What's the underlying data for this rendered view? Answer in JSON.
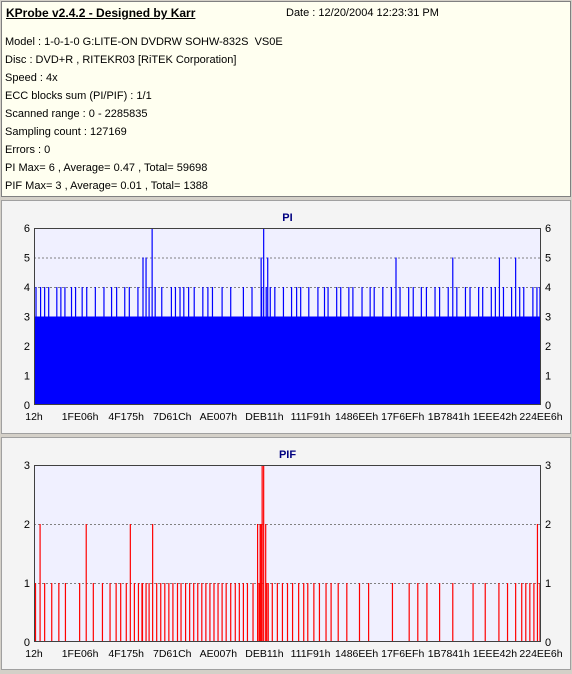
{
  "header": {
    "title": "KProbe v2.4.2 - Designed by Karr",
    "date": "Date : 12/20/2004 12:23:31 PM",
    "lines": [
      "Model : 1-0-1-0 G:LITE-ON DVDRW SOHW-832S  VS0E",
      "Disc : DVD+R , RITEKR03 [RiTEK Corporation]",
      "Speed : 4x",
      "ECC blocks sum (PI/PIF) : 1/1",
      "Scanned range : 0 - 2285835",
      "Sampling count : 127169",
      "Errors : 0",
      "PI Max= 6 , Average= 0.47 , Total= 59698",
      "PIF Max= 3 , Average= 0.01 , Total= 1388"
    ]
  },
  "chart_data": [
    {
      "type": "bar",
      "title": "PI",
      "ylim": [
        0,
        6
      ],
      "yticks": [
        0,
        1,
        2,
        3,
        4,
        5,
        6
      ],
      "xtick_labels": [
        "12h",
        "1FE06h",
        "4F175h",
        "7D61Ch",
        "AE007h",
        "DEB11h",
        "111F91h",
        "1486EEh",
        "17F6EFh",
        "1B7841h",
        "1EEE42h",
        "224EE6h"
      ],
      "color": "#0000ff",
      "grid": true,
      "base_value": 3,
      "spikes": [
        {
          "x": 0.004,
          "v": 4
        },
        {
          "x": 0.008,
          "v": 2
        },
        {
          "x": 0.013,
          "v": 4
        },
        {
          "x": 0.021,
          "v": 4
        },
        {
          "x": 0.029,
          "v": 4
        },
        {
          "x": 0.037,
          "v": 2
        },
        {
          "x": 0.045,
          "v": 4
        },
        {
          "x": 0.053,
          "v": 4
        },
        {
          "x": 0.061,
          "v": 4
        },
        {
          "x": 0.067,
          "v": 2
        },
        {
          "x": 0.074,
          "v": 4
        },
        {
          "x": 0.082,
          "v": 4
        },
        {
          "x": 0.088,
          "v": 2
        },
        {
          "x": 0.095,
          "v": 4
        },
        {
          "x": 0.104,
          "v": 4
        },
        {
          "x": 0.112,
          "v": 2
        },
        {
          "x": 0.121,
          "v": 4
        },
        {
          "x": 0.128,
          "v": 2
        },
        {
          "x": 0.138,
          "v": 4
        },
        {
          "x": 0.146,
          "v": 2
        },
        {
          "x": 0.153,
          "v": 4
        },
        {
          "x": 0.163,
          "v": 4
        },
        {
          "x": 0.17,
          "v": 2
        },
        {
          "x": 0.179,
          "v": 4
        },
        {
          "x": 0.188,
          "v": 4
        },
        {
          "x": 0.196,
          "v": 2
        },
        {
          "x": 0.205,
          "v": 4
        },
        {
          "x": 0.215,
          "v": 5
        },
        {
          "x": 0.221,
          "v": 5
        },
        {
          "x": 0.227,
          "v": 4
        },
        {
          "x": 0.233,
          "v": 6
        },
        {
          "x": 0.239,
          "v": 4
        },
        {
          "x": 0.246,
          "v": 2
        },
        {
          "x": 0.252,
          "v": 4
        },
        {
          "x": 0.262,
          "v": 2
        },
        {
          "x": 0.271,
          "v": 4
        },
        {
          "x": 0.279,
          "v": 4
        },
        {
          "x": 0.288,
          "v": 4
        },
        {
          "x": 0.297,
          "v": 2
        },
        {
          "x": 0.305,
          "v": 4
        },
        {
          "x": 0.316,
          "v": 4
        },
        {
          "x": 0.323,
          "v": 2
        },
        {
          "x": 0.333,
          "v": 4
        },
        {
          "x": 0.343,
          "v": 4
        },
        {
          "x": 0.352,
          "v": 4
        },
        {
          "x": 0.362,
          "v": 2
        },
        {
          "x": 0.371,
          "v": 4
        },
        {
          "x": 0.379,
          "v": 2
        },
        {
          "x": 0.388,
          "v": 4
        },
        {
          "x": 0.396,
          "v": 2
        },
        {
          "x": 0.404,
          "v": 2
        },
        {
          "x": 0.413,
          "v": 4
        },
        {
          "x": 0.423,
          "v": 2
        },
        {
          "x": 0.43,
          "v": 4
        },
        {
          "x": 0.44,
          "v": 2
        },
        {
          "x": 0.449,
          "v": 4
        },
        {
          "x": 0.458,
          "v": 2
        },
        {
          "x": 0.466,
          "v": 4
        },
        {
          "x": 0.475,
          "v": 4
        },
        {
          "x": 0.483,
          "v": 2
        },
        {
          "x": 0.492,
          "v": 4
        },
        {
          "x": 0.5,
          "v": 2
        },
        {
          "x": 0.508,
          "v": 4
        },
        {
          "x": 0.518,
          "v": 4
        },
        {
          "x": 0.526,
          "v": 4
        },
        {
          "x": 0.534,
          "v": 2
        },
        {
          "x": 0.542,
          "v": 4
        },
        {
          "x": 0.551,
          "v": 2
        },
        {
          "x": 0.56,
          "v": 4
        },
        {
          "x": 0.566,
          "v": 2
        },
        {
          "x": 0.573,
          "v": 4
        },
        {
          "x": 0.58,
          "v": 4
        },
        {
          "x": 0.589,
          "v": 2
        },
        {
          "x": 0.597,
          "v": 4
        },
        {
          "x": 0.605,
          "v": 4
        },
        {
          "x": 0.613,
          "v": 2
        },
        {
          "x": 0.621,
          "v": 4
        },
        {
          "x": 0.629,
          "v": 4
        },
        {
          "x": 0.637,
          "v": 2
        },
        {
          "x": 0.647,
          "v": 4
        },
        {
          "x": 0.655,
          "v": 2
        },
        {
          "x": 0.663,
          "v": 4
        },
        {
          "x": 0.671,
          "v": 4
        },
        {
          "x": 0.679,
          "v": 2
        },
        {
          "x": 0.688,
          "v": 4
        },
        {
          "x": 0.697,
          "v": 2
        },
        {
          "x": 0.705,
          "v": 4
        },
        {
          "x": 0.714,
          "v": 5
        },
        {
          "x": 0.722,
          "v": 4
        },
        {
          "x": 0.731,
          "v": 2
        },
        {
          "x": 0.739,
          "v": 4
        },
        {
          "x": 0.748,
          "v": 4
        },
        {
          "x": 0.756,
          "v": 2
        },
        {
          "x": 0.764,
          "v": 4
        },
        {
          "x": 0.774,
          "v": 4
        },
        {
          "x": 0.782,
          "v": 2
        },
        {
          "x": 0.791,
          "v": 4
        },
        {
          "x": 0.8,
          "v": 4
        },
        {
          "x": 0.808,
          "v": 2
        },
        {
          "x": 0.817,
          "v": 4
        },
        {
          "x": 0.826,
          "v": 5
        },
        {
          "x": 0.834,
          "v": 4
        },
        {
          "x": 0.842,
          "v": 2
        },
        {
          "x": 0.851,
          "v": 4
        },
        {
          "x": 0.86,
          "v": 4
        },
        {
          "x": 0.868,
          "v": 2
        },
        {
          "x": 0.877,
          "v": 4
        },
        {
          "x": 0.885,
          "v": 4
        },
        {
          "x": 0.893,
          "v": 2
        },
        {
          "x": 0.902,
          "v": 4
        },
        {
          "x": 0.91,
          "v": 4
        },
        {
          "x": 0.918,
          "v": 5
        },
        {
          "x": 0.926,
          "v": 4
        },
        {
          "x": 0.934,
          "v": 2
        },
        {
          "x": 0.942,
          "v": 4
        },
        {
          "x": 0.95,
          "v": 5
        },
        {
          "x": 0.958,
          "v": 4
        },
        {
          "x": 0.966,
          "v": 4
        },
        {
          "x": 0.975,
          "v": 2
        },
        {
          "x": 0.984,
          "v": 4
        },
        {
          "x": 0.992,
          "v": 4
        },
        {
          "x": 0.998,
          "v": 4
        },
        {
          "x": 0.2955,
          "v": 4
        },
        {
          "x": 0.453,
          "v": 6
        },
        {
          "x": 0.448,
          "v": 5
        },
        {
          "x": 0.461,
          "v": 5
        },
        {
          "x": 0.458,
          "v": 4
        }
      ]
    },
    {
      "type": "bar",
      "title": "PIF",
      "ylim": [
        0,
        3
      ],
      "yticks": [
        0,
        1,
        2,
        3
      ],
      "xtick_labels": [
        "12h",
        "1FE06h",
        "4F175h",
        "7D61Ch",
        "AE007h",
        "DEB11h",
        "111F91h",
        "1486EEh",
        "17F6EFh",
        "1B7841h",
        "1EEE42h",
        "224EE6h"
      ],
      "color": "#ff0000",
      "grid": true,
      "base_value": 0,
      "spikes": [
        {
          "x": 0.003,
          "v": 1
        },
        {
          "x": 0.012,
          "v": 2
        },
        {
          "x": 0.021,
          "v": 1
        },
        {
          "x": 0.035,
          "v": 1
        },
        {
          "x": 0.049,
          "v": 1
        },
        {
          "x": 0.062,
          "v": 1
        },
        {
          "x": 0.09,
          "v": 1
        },
        {
          "x": 0.103,
          "v": 2
        },
        {
          "x": 0.117,
          "v": 1
        },
        {
          "x": 0.135,
          "v": 1
        },
        {
          "x": 0.15,
          "v": 1
        },
        {
          "x": 0.162,
          "v": 1
        },
        {
          "x": 0.171,
          "v": 1
        },
        {
          "x": 0.182,
          "v": 1
        },
        {
          "x": 0.19,
          "v": 2
        },
        {
          "x": 0.198,
          "v": 1
        },
        {
          "x": 0.206,
          "v": 1
        },
        {
          "x": 0.213,
          "v": 1
        },
        {
          "x": 0.221,
          "v": 1
        },
        {
          "x": 0.227,
          "v": 1
        },
        {
          "x": 0.234,
          "v": 2
        },
        {
          "x": 0.242,
          "v": 1
        },
        {
          "x": 0.25,
          "v": 1
        },
        {
          "x": 0.258,
          "v": 1
        },
        {
          "x": 0.266,
          "v": 1
        },
        {
          "x": 0.274,
          "v": 1
        },
        {
          "x": 0.283,
          "v": 1
        },
        {
          "x": 0.29,
          "v": 1
        },
        {
          "x": 0.299,
          "v": 1
        },
        {
          "x": 0.307,
          "v": 1
        },
        {
          "x": 0.315,
          "v": 1
        },
        {
          "x": 0.323,
          "v": 1
        },
        {
          "x": 0.331,
          "v": 1
        },
        {
          "x": 0.339,
          "v": 1
        },
        {
          "x": 0.347,
          "v": 1
        },
        {
          "x": 0.355,
          "v": 1
        },
        {
          "x": 0.363,
          "v": 1
        },
        {
          "x": 0.371,
          "v": 1
        },
        {
          "x": 0.379,
          "v": 1
        },
        {
          "x": 0.388,
          "v": 1
        },
        {
          "x": 0.397,
          "v": 1
        },
        {
          "x": 0.405,
          "v": 1
        },
        {
          "x": 0.413,
          "v": 1
        },
        {
          "x": 0.421,
          "v": 1
        },
        {
          "x": 0.432,
          "v": 1
        },
        {
          "x": 0.441,
          "v": 2
        },
        {
          "x": 0.446,
          "v": 2
        },
        {
          "x": 0.45,
          "v": 3
        },
        {
          "x": 0.453,
          "v": 3
        },
        {
          "x": 0.457,
          "v": 2
        },
        {
          "x": 0.462,
          "v": 1
        },
        {
          "x": 0.47,
          "v": 1
        },
        {
          "x": 0.48,
          "v": 1
        },
        {
          "x": 0.49,
          "v": 1
        },
        {
          "x": 0.5,
          "v": 1
        },
        {
          "x": 0.51,
          "v": 1
        },
        {
          "x": 0.522,
          "v": 1
        },
        {
          "x": 0.532,
          "v": 1
        },
        {
          "x": 0.54,
          "v": 1
        },
        {
          "x": 0.552,
          "v": 1
        },
        {
          "x": 0.563,
          "v": 1
        },
        {
          "x": 0.576,
          "v": 1
        },
        {
          "x": 0.586,
          "v": 1
        },
        {
          "x": 0.6,
          "v": 1
        },
        {
          "x": 0.617,
          "v": 1
        },
        {
          "x": 0.642,
          "v": 1
        },
        {
          "x": 0.66,
          "v": 1
        },
        {
          "x": 0.707,
          "v": 1
        },
        {
          "x": 0.74,
          "v": 1
        },
        {
          "x": 0.757,
          "v": 1
        },
        {
          "x": 0.775,
          "v": 1
        },
        {
          "x": 0.8,
          "v": 1
        },
        {
          "x": 0.826,
          "v": 1
        },
        {
          "x": 0.866,
          "v": 1
        },
        {
          "x": 0.89,
          "v": 1
        },
        {
          "x": 0.917,
          "v": 1
        },
        {
          "x": 0.934,
          "v": 1
        },
        {
          "x": 0.95,
          "v": 1
        },
        {
          "x": 0.962,
          "v": 1
        },
        {
          "x": 0.97,
          "v": 1
        },
        {
          "x": 0.978,
          "v": 1
        },
        {
          "x": 0.986,
          "v": 1
        },
        {
          "x": 0.993,
          "v": 2
        },
        {
          "x": 0.998,
          "v": 1
        },
        {
          "x": 0.448,
          "v": 2
        },
        {
          "x": 0.444,
          "v": 1
        },
        {
          "x": 0.459,
          "v": 1
        },
        {
          "x": 0.214,
          "v": 1
        }
      ]
    }
  ]
}
